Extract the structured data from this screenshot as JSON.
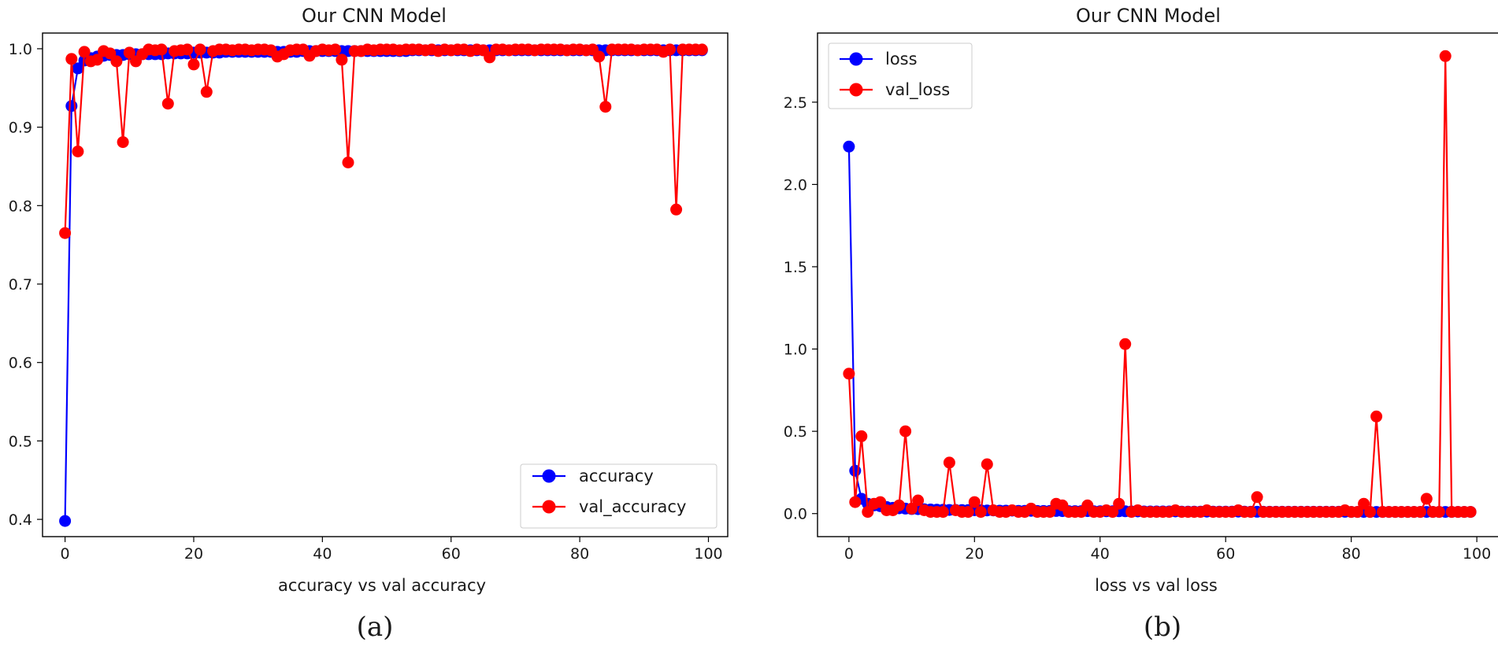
{
  "chart_data": [
    {
      "type": "line",
      "title": "Our CNN Model",
      "xlabel": "accuracy vs val accuracy",
      "ylabel": "",
      "caption": "(a)",
      "xlim": [
        -3.5,
        103
      ],
      "ylim": [
        0.378,
        1.02
      ],
      "xticks": [
        0,
        20,
        40,
        60,
        80,
        100
      ],
      "yticks": [
        0.4,
        0.5,
        0.6,
        0.7,
        0.8,
        0.9,
        1.0
      ],
      "ytick_labels": [
        "0.4",
        "0.5",
        "0.6",
        "0.7",
        "0.8",
        "0.9",
        "1.0"
      ],
      "legend_position": "lower-right",
      "grid": false,
      "x": [
        0,
        1,
        2,
        3,
        4,
        5,
        6,
        7,
        8,
        9,
        10,
        11,
        12,
        13,
        14,
        15,
        16,
        17,
        18,
        19,
        20,
        21,
        22,
        23,
        24,
        25,
        26,
        27,
        28,
        29,
        30,
        31,
        32,
        33,
        34,
        35,
        36,
        37,
        38,
        39,
        40,
        41,
        42,
        43,
        44,
        45,
        46,
        47,
        48,
        49,
        50,
        51,
        52,
        53,
        54,
        55,
        56,
        57,
        58,
        59,
        60,
        61,
        62,
        63,
        64,
        65,
        66,
        67,
        68,
        69,
        70,
        71,
        72,
        73,
        74,
        75,
        76,
        77,
        78,
        79,
        80,
        81,
        82,
        83,
        84,
        85,
        86,
        87,
        88,
        89,
        90,
        91,
        92,
        93,
        94,
        95,
        96,
        97,
        98,
        99
      ],
      "series": [
        {
          "name": "accuracy",
          "color": "#0000ff",
          "values": [
            0.398,
            0.927,
            0.975,
            0.985,
            0.988,
            0.99,
            0.991,
            0.992,
            0.992,
            0.992,
            0.993,
            0.993,
            0.993,
            0.993,
            0.993,
            0.993,
            0.994,
            0.994,
            0.994,
            0.994,
            0.995,
            0.995,
            0.995,
            0.995,
            0.995,
            0.996,
            0.996,
            0.996,
            0.996,
            0.996,
            0.996,
            0.996,
            0.996,
            0.996,
            0.996,
            0.996,
            0.996,
            0.997,
            0.997,
            0.997,
            0.997,
            0.997,
            0.997,
            0.997,
            0.997,
            0.997,
            0.997,
            0.997,
            0.997,
            0.997,
            0.997,
            0.997,
            0.997,
            0.997,
            0.998,
            0.998,
            0.998,
            0.998,
            0.998,
            0.998,
            0.998,
            0.998,
            0.998,
            0.998,
            0.998,
            0.998,
            0.998,
            0.998,
            0.998,
            0.998,
            0.998,
            0.998,
            0.998,
            0.998,
            0.998,
            0.998,
            0.998,
            0.998,
            0.998,
            0.998,
            0.998,
            0.998,
            0.998,
            0.998,
            0.998,
            0.998,
            0.998,
            0.998,
            0.998,
            0.998,
            0.998,
            0.998,
            0.998,
            0.998,
            0.998,
            0.998,
            0.998,
            0.998,
            0.998,
            0.998
          ]
        },
        {
          "name": "val_accuracy",
          "color": "#ff0000",
          "values": [
            0.765,
            0.987,
            0.869,
            0.996,
            0.984,
            0.986,
            0.997,
            0.994,
            0.984,
            0.881,
            0.995,
            0.984,
            0.993,
            0.999,
            0.998,
            0.999,
            0.93,
            0.997,
            0.998,
            0.999,
            0.98,
            0.999,
            0.945,
            0.997,
            0.999,
            0.999,
            0.998,
            0.999,
            0.999,
            0.998,
            0.999,
            0.999,
            0.998,
            0.99,
            0.993,
            0.998,
            0.999,
            0.999,
            0.991,
            0.997,
            0.999,
            0.998,
            0.999,
            0.986,
            0.855,
            0.997,
            0.997,
            0.999,
            0.998,
            0.999,
            0.999,
            0.999,
            0.998,
            0.999,
            0.999,
            0.999,
            0.998,
            0.999,
            0.997,
            0.999,
            0.998,
            0.999,
            0.999,
            0.997,
            0.999,
            0.998,
            0.989,
            0.999,
            0.999,
            0.998,
            0.999,
            0.999,
            0.999,
            0.998,
            0.999,
            0.999,
            0.999,
            0.999,
            0.998,
            0.999,
            0.999,
            0.998,
            0.999,
            0.99,
            0.926,
            0.999,
            0.999,
            0.999,
            0.999,
            0.998,
            0.999,
            0.999,
            0.999,
            0.996,
            0.999,
            0.795,
            0.999,
            0.999,
            0.999,
            0.999
          ]
        }
      ]
    },
    {
      "type": "line",
      "title": "Our CNN Model",
      "xlabel": "loss vs val loss",
      "ylabel": "",
      "caption": "(b)",
      "xlim": [
        -5,
        104
      ],
      "ylim": [
        -0.14,
        2.92
      ],
      "xticks": [
        0,
        20,
        40,
        60,
        80,
        100
      ],
      "yticks": [
        0.0,
        0.5,
        1.0,
        1.5,
        2.0,
        2.5
      ],
      "ytick_labels": [
        "0.0",
        "0.5",
        "1.0",
        "1.5",
        "2.0",
        "2.5"
      ],
      "legend_position": "upper-left",
      "grid": false,
      "x": [
        0,
        1,
        2,
        3,
        4,
        5,
        6,
        7,
        8,
        9,
        10,
        11,
        12,
        13,
        14,
        15,
        16,
        17,
        18,
        19,
        20,
        21,
        22,
        23,
        24,
        25,
        26,
        27,
        28,
        29,
        30,
        31,
        32,
        33,
        34,
        35,
        36,
        37,
        38,
        39,
        40,
        41,
        42,
        43,
        44,
        45,
        46,
        47,
        48,
        49,
        50,
        51,
        52,
        53,
        54,
        55,
        56,
        57,
        58,
        59,
        60,
        61,
        62,
        63,
        64,
        65,
        66,
        67,
        68,
        69,
        70,
        71,
        72,
        73,
        74,
        75,
        76,
        77,
        78,
        79,
        80,
        81,
        82,
        83,
        84,
        85,
        86,
        87,
        88,
        89,
        90,
        91,
        92,
        93,
        94,
        95,
        96,
        97,
        98,
        99
      ],
      "series": [
        {
          "name": "loss",
          "color": "#0000ff",
          "values": [
            2.23,
            0.26,
            0.09,
            0.06,
            0.05,
            0.045,
            0.04,
            0.035,
            0.032,
            0.03,
            0.028,
            0.027,
            0.026,
            0.025,
            0.024,
            0.023,
            0.022,
            0.022,
            0.021,
            0.021,
            0.02,
            0.02,
            0.019,
            0.019,
            0.018,
            0.018,
            0.018,
            0.017,
            0.017,
            0.017,
            0.016,
            0.016,
            0.016,
            0.016,
            0.015,
            0.015,
            0.015,
            0.015,
            0.015,
            0.014,
            0.014,
            0.014,
            0.014,
            0.014,
            0.014,
            0.013,
            0.013,
            0.013,
            0.013,
            0.013,
            0.013,
            0.013,
            0.013,
            0.012,
            0.012,
            0.012,
            0.012,
            0.012,
            0.012,
            0.012,
            0.012,
            0.012,
            0.012,
            0.012,
            0.011,
            0.011,
            0.011,
            0.011,
            0.011,
            0.011,
            0.011,
            0.011,
            0.011,
            0.011,
            0.011,
            0.011,
            0.011,
            0.011,
            0.011,
            0.011,
            0.01,
            0.01,
            0.01,
            0.01,
            0.01,
            0.01,
            0.01,
            0.01,
            0.01,
            0.01,
            0.01,
            0.01,
            0.01,
            0.01,
            0.01,
            0.01,
            0.01,
            0.01,
            0.01,
            0.01
          ]
        },
        {
          "name": "val_loss",
          "color": "#ff0000",
          "values": [
            0.85,
            0.07,
            0.47,
            0.01,
            0.06,
            0.07,
            0.02,
            0.02,
            0.05,
            0.5,
            0.03,
            0.08,
            0.02,
            0.01,
            0.01,
            0.01,
            0.31,
            0.02,
            0.01,
            0.01,
            0.07,
            0.01,
            0.3,
            0.02,
            0.01,
            0.01,
            0.02,
            0.01,
            0.01,
            0.03,
            0.01,
            0.01,
            0.01,
            0.06,
            0.05,
            0.01,
            0.01,
            0.01,
            0.05,
            0.01,
            0.01,
            0.02,
            0.01,
            0.06,
            1.03,
            0.01,
            0.02,
            0.01,
            0.01,
            0.01,
            0.01,
            0.01,
            0.02,
            0.01,
            0.01,
            0.01,
            0.01,
            0.02,
            0.01,
            0.01,
            0.01,
            0.01,
            0.02,
            0.01,
            0.01,
            0.1,
            0.01,
            0.01,
            0.01,
            0.01,
            0.01,
            0.01,
            0.01,
            0.01,
            0.01,
            0.01,
            0.01,
            0.01,
            0.01,
            0.02,
            0.01,
            0.01,
            0.06,
            0.01,
            0.59,
            0.01,
            0.01,
            0.01,
            0.01,
            0.01,
            0.01,
            0.01,
            0.09,
            0.01,
            0.01,
            2.78,
            0.01,
            0.01,
            0.01,
            0.01
          ]
        }
      ]
    }
  ]
}
